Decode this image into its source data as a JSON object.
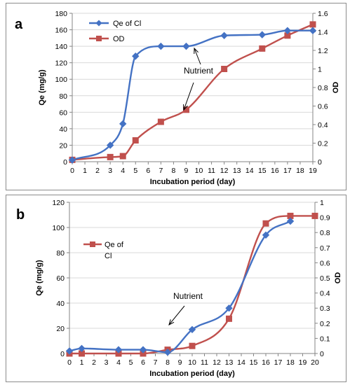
{
  "chart_data": [
    {
      "panel_label": "a",
      "type": "line",
      "xlabel": "Incubation period (day)",
      "ylabel": "Qe (mg/g)",
      "y2label": "OD",
      "xlim": [
        0,
        19
      ],
      "ylim": [
        0,
        180
      ],
      "y2lim": [
        0,
        1.6
      ],
      "x_ticks": [
        "0",
        "1",
        "2",
        "3",
        "4",
        "5",
        "6",
        "7",
        "8",
        "9",
        "10",
        "11",
        "12",
        "13",
        "14",
        "15",
        "16",
        "17",
        "18",
        "19"
      ],
      "y_ticks": [
        "0",
        "20",
        "40",
        "60",
        "80",
        "100",
        "120",
        "140",
        "160",
        "180"
      ],
      "y2_ticks": [
        "0",
        "0.2",
        "0.4",
        "0.6",
        "0.8",
        "1",
        "1.2",
        "1.4",
        "1.6"
      ],
      "legend_position": "top-left",
      "series": [
        {
          "name": "Qe of Cl",
          "axis": "left",
          "color": "#4472c4",
          "marker": "diamond",
          "x": [
            0,
            3,
            4,
            5,
            7,
            9,
            12,
            15,
            17,
            19
          ],
          "y": [
            2,
            20,
            46,
            128,
            140,
            140,
            153,
            154,
            159,
            159
          ]
        },
        {
          "name": "OD",
          "axis": "right",
          "color": "#c0504d",
          "marker": "square",
          "x": [
            0,
            3,
            4,
            5,
            7,
            9,
            12,
            15,
            17,
            19
          ],
          "y": [
            0.02,
            0.05,
            0.06,
            0.23,
            0.43,
            0.56,
            1.0,
            1.22,
            1.36,
            1.48
          ]
        }
      ],
      "annotations": [
        {
          "text": "Nutrient"
        }
      ]
    },
    {
      "panel_label": "b",
      "type": "line",
      "xlabel": "Incubation period (day)",
      "ylabel": "Qe (mg/g)",
      "y2label": "OD",
      "xlim": [
        0,
        20
      ],
      "ylim": [
        0,
        120
      ],
      "y2lim": [
        0,
        1
      ],
      "x_ticks": [
        "0",
        "1",
        "2",
        "3",
        "4",
        "5",
        "6",
        "7",
        "8",
        "9",
        "10",
        "11",
        "12",
        "13",
        "14",
        "15",
        "16",
        "17",
        "18",
        "19",
        "20"
      ],
      "y_ticks": [
        "0",
        "20",
        "40",
        "60",
        "80",
        "100",
        "120"
      ],
      "y2_ticks": [
        "0",
        "0.1",
        "0.2",
        "0.3",
        "0.4",
        "0.5",
        "0.6",
        "0.7",
        "0.8",
        "0.9",
        "1"
      ],
      "legend_position": "middle-left",
      "series": [
        {
          "name": "Qe of Cl",
          "axis": "left",
          "color": "#4472c4",
          "marker": "diamond",
          "x": [
            0,
            1,
            4,
            6,
            8,
            10,
            13,
            16,
            18
          ],
          "y": [
            2,
            4,
            3,
            3,
            1,
            19,
            36,
            94,
            105
          ]
        },
        {
          "name": "Qe of Cl",
          "axis": "right",
          "color": "#c0504d",
          "marker": "square",
          "x": [
            0,
            1,
            4,
            6,
            8,
            10,
            13,
            16,
            18,
            20
          ],
          "y": [
            0.0,
            0.0,
            0.0,
            0.0,
            0.025,
            0.05,
            0.23,
            0.86,
            0.91,
            0.91
          ]
        }
      ],
      "annotations": [
        {
          "text": "Nutrient"
        }
      ]
    }
  ]
}
